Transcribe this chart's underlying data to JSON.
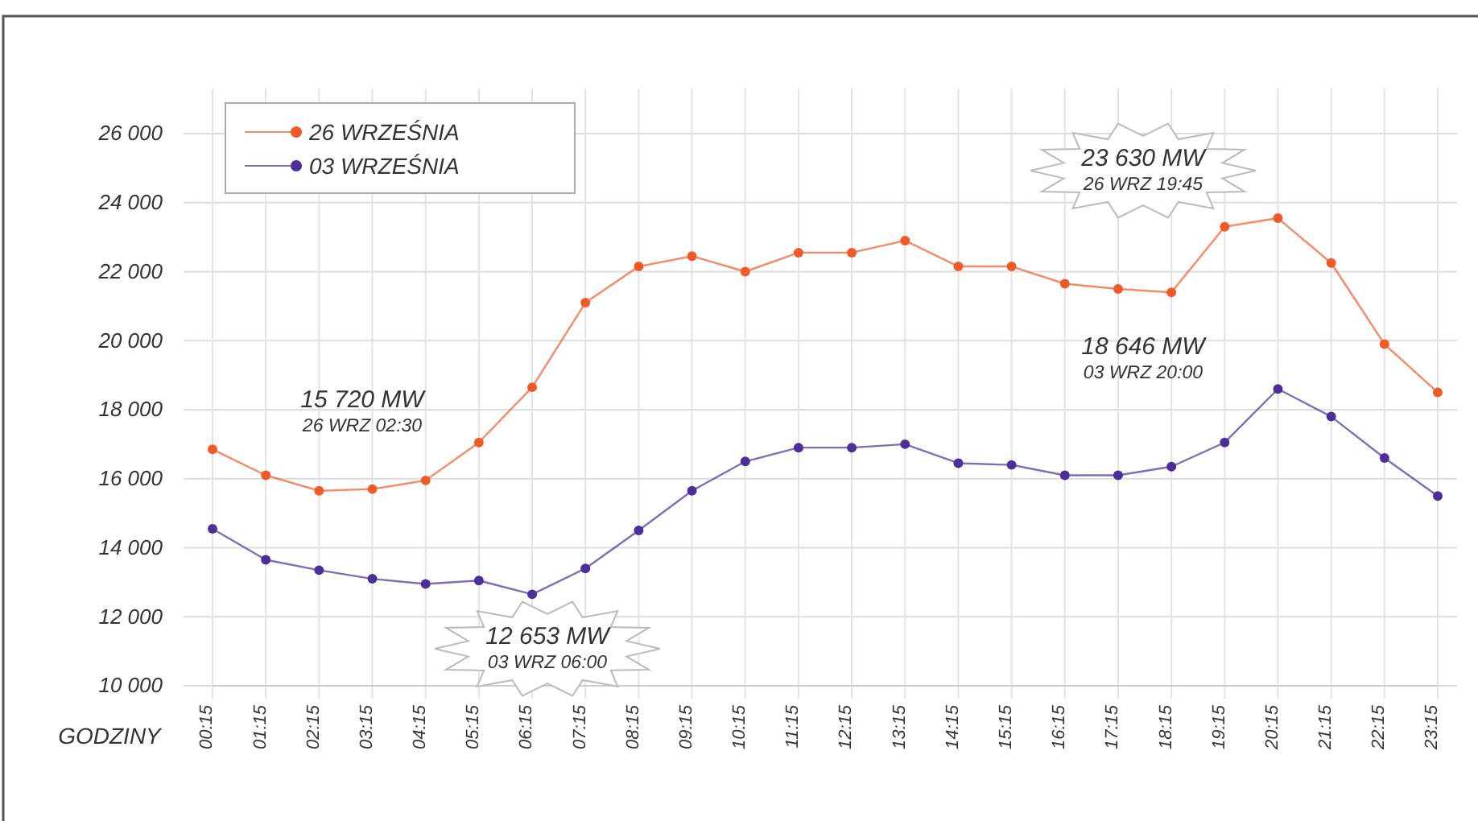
{
  "chart_data": {
    "type": "line",
    "xlabel": "GODZINY",
    "categories": [
      "00:15",
      "01:15",
      "02:15",
      "03:15",
      "04:15",
      "05:15",
      "06:15",
      "07:15",
      "08:15",
      "09:15",
      "10:15",
      "11:15",
      "12:15",
      "13:15",
      "14:15",
      "15:15",
      "16:15",
      "17:15",
      "18:15",
      "19:15",
      "20:15",
      "21:15",
      "22:15",
      "23:15"
    ],
    "series": [
      {
        "name": "26 WRZEŚNIA",
        "color": "#f05a28",
        "values": [
          16850,
          16100,
          15650,
          15700,
          15950,
          17050,
          18650,
          21100,
          22150,
          22450,
          22000,
          22550,
          22550,
          22900,
          22150,
          22150,
          21650,
          21500,
          21400,
          23300,
          23550,
          22250,
          19900,
          18500
        ]
      },
      {
        "name": "03 WRZEŚNIA",
        "color": "#4a2f9a",
        "values": [
          14550,
          13650,
          13350,
          13100,
          12950,
          13050,
          12650,
          13400,
          14500,
          15650,
          16500,
          16900,
          16900,
          17000,
          16450,
          16400,
          16100,
          16100,
          16350,
          17050,
          18600,
          17800,
          16600,
          15500
        ]
      }
    ],
    "ylim": [
      10000,
      26000
    ],
    "yticks": [
      {
        "value": 10000,
        "label": "10 000"
      },
      {
        "value": 12000,
        "label": "12 000"
      },
      {
        "value": 14000,
        "label": "14 000"
      },
      {
        "value": 16000,
        "label": "16 000"
      },
      {
        "value": 18000,
        "label": "18 000"
      },
      {
        "value": 20000,
        "label": "20 000"
      },
      {
        "value": 22000,
        "label": "22 000"
      },
      {
        "value": 24000,
        "label": "24 000"
      },
      {
        "value": 26000,
        "label": "26 000"
      }
    ],
    "grid": true,
    "legend": "top left",
    "marker": "circle",
    "line_style": "solid",
    "annotations": [
      "15 720 MW",
      "26 WRZ 02:30",
      "12 653 MW",
      "03 WRZ 06:00",
      "23 630 MW",
      "26 WRZ 19:45",
      "18 646 MW",
      "03 WRZ 20:00"
    ]
  }
}
